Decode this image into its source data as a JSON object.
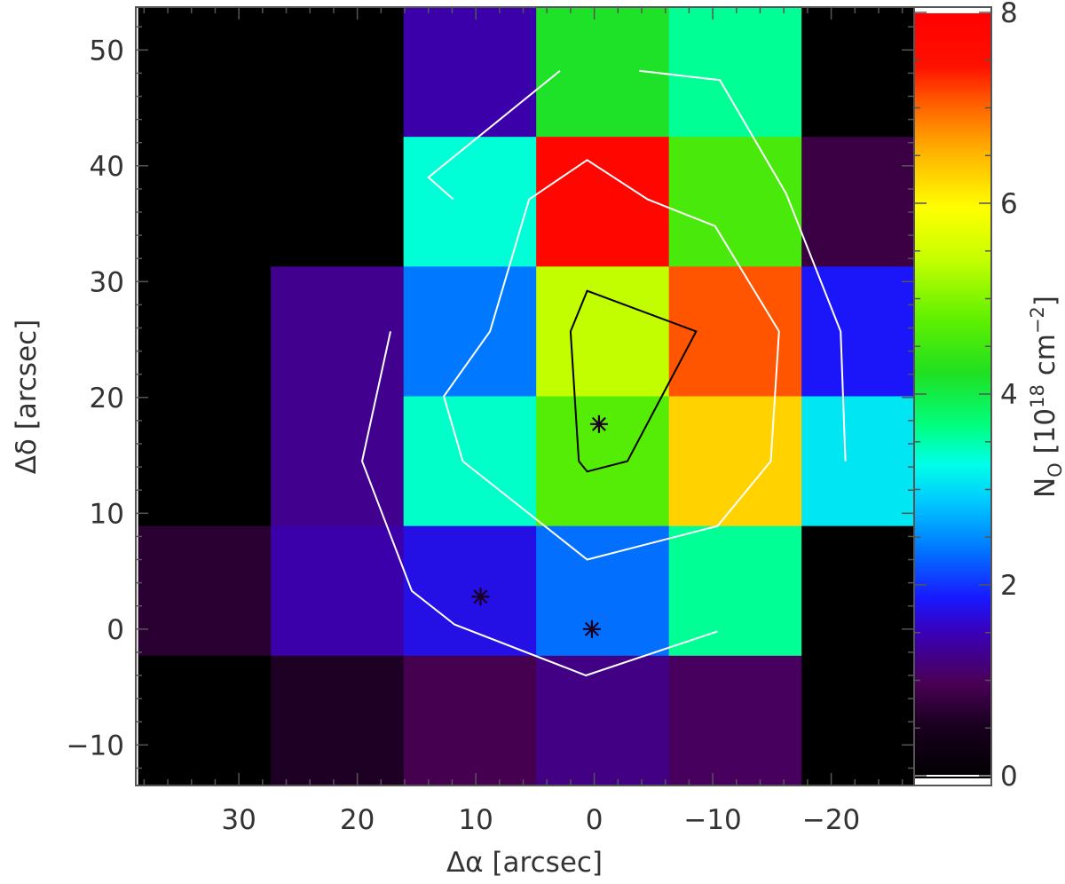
{
  "chart_data": {
    "type": "heatmap",
    "title": "",
    "xlabel": "Δα [arcsec]",
    "ylabel": "Δδ [arcsec]",
    "colorbar_label": "N",
    "colorbar_label_sub": "O",
    "colorbar_label_rest": " [10",
    "colorbar_label_exp": "18",
    "colorbar_label_unit": " cm",
    "colorbar_label_unit_exp": "−2",
    "colorbar_label_close": "]",
    "xlim": [
      38.7,
      -27.0
    ],
    "ylim": [
      -13.5,
      53.7
    ],
    "x_ticks": [
      30,
      20,
      10,
      0,
      -10,
      -20
    ],
    "x_tick_labels": [
      "30",
      "20",
      "10",
      "0",
      "−10",
      "−20"
    ],
    "y_ticks": [
      -10,
      0,
      10,
      20,
      30,
      40,
      50
    ],
    "y_tick_labels": [
      "−10",
      "0",
      "10",
      "20",
      "30",
      "40",
      "50"
    ],
    "colorbar_range": [
      0,
      8
    ],
    "colorbar_ticks": [
      0,
      2,
      4,
      6,
      8
    ],
    "colorbar_tick_labels": [
      "0",
      "2",
      "4",
      "6",
      "8"
    ],
    "colormap": "rainbow",
    "cell_size_arcsec": 11.2,
    "x_columns": [
      32.9,
      21.7,
      10.5,
      -0.7,
      -11.9,
      -23.1
    ],
    "y_rows": [
      42.5,
      31.3,
      20.1,
      8.9,
      -2.3,
      -13.5
    ],
    "row_top_values": [
      53.7,
      42.5,
      31.3,
      20.1,
      8.9,
      -2.3
    ],
    "grid": [
      [
        0.0,
        0.0,
        1.45,
        4.2,
        3.6,
        0.0
      ],
      [
        0.0,
        0.0,
        3.35,
        7.8,
        4.6,
        0.85
      ],
      [
        0.0,
        1.3,
        2.4,
        5.4,
        7.1,
        1.85
      ],
      [
        0.0,
        1.3,
        3.4,
        4.7,
        6.3,
        3.1
      ],
      [
        0.7,
        1.45,
        1.75,
        2.35,
        3.6,
        0.0
      ],
      [
        0.0,
        0.6,
        0.95,
        1.25,
        1.05,
        0.0
      ]
    ],
    "contours": [
      {
        "color": "#ffffff",
        "points": [
          [
            17.2,
            25.7
          ],
          [
            19.6,
            14.5
          ],
          [
            15.4,
            3.3
          ],
          [
            11.8,
            0.4
          ],
          [
            0.7,
            -4.0
          ],
          [
            -10.4,
            -0.2
          ]
        ]
      },
      {
        "color": "#ffffff",
        "points": [
          [
            11.9,
            37.1
          ],
          [
            14.0,
            39.0
          ],
          [
            2.9,
            48.2
          ]
        ]
      },
      {
        "color": "#ffffff",
        "points": [
          [
            -3.8,
            48.2
          ],
          [
            -10.6,
            47.4
          ],
          [
            -16.2,
            37.6
          ],
          [
            -20.8,
            25.7
          ],
          [
            -21.2,
            14.5
          ]
        ]
      },
      {
        "color": "#ffffff",
        "points": [
          [
            11.1,
            14.5
          ],
          [
            12.7,
            20.1
          ],
          [
            8.8,
            25.7
          ],
          [
            5.5,
            37.1
          ],
          [
            0.6,
            40.5
          ],
          [
            -4.5,
            37.1
          ],
          [
            -10.2,
            34.8
          ],
          [
            -15.6,
            25.7
          ],
          [
            -14.9,
            14.5
          ],
          [
            -10.4,
            8.9
          ],
          [
            0.6,
            6.0
          ],
          [
            11.1,
            14.5
          ]
        ]
      },
      {
        "color": "#000000",
        "points": [
          [
            1.3,
            14.5
          ],
          [
            0.6,
            13.6
          ],
          [
            -2.8,
            14.5
          ],
          [
            -8.6,
            25.7
          ],
          [
            0.6,
            29.2
          ],
          [
            2.0,
            25.7
          ],
          [
            1.3,
            14.5
          ]
        ]
      }
    ],
    "markers": [
      {
        "x": -0.4,
        "y": 17.7
      },
      {
        "x": 9.6,
        "y": 2.8
      },
      {
        "x": 0.2,
        "y": 0.0
      }
    ]
  }
}
